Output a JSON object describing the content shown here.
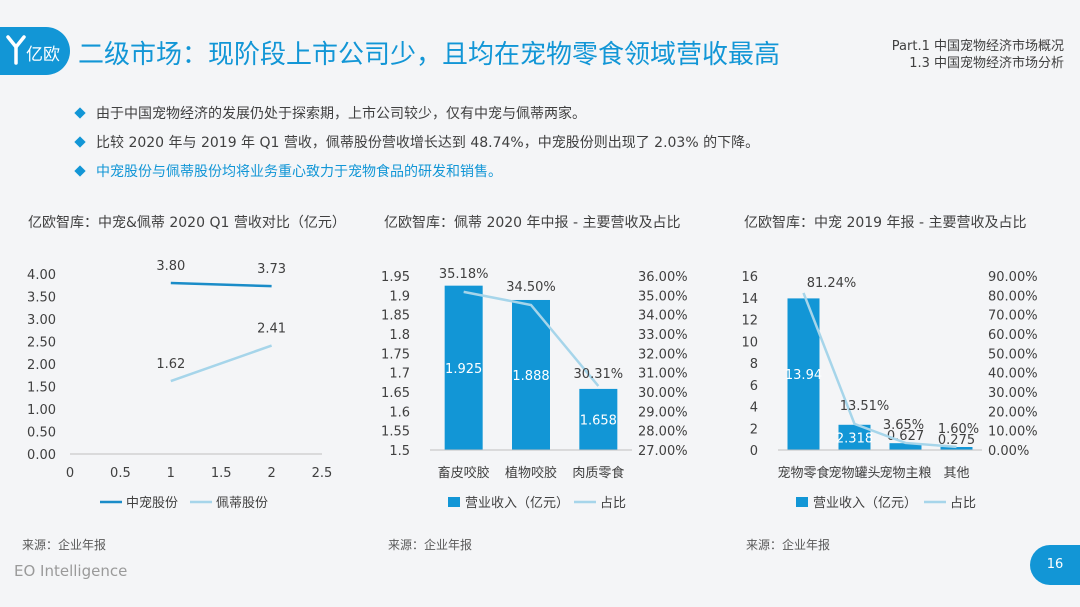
{
  "logo": {
    "text": "亿欧"
  },
  "title": "二级市场：现阶段上市公司少，且均在宠物零食领域营收最高",
  "breadcrumb": {
    "line1": "Part.1 中国宠物经济市场概况",
    "line2": "1.3 中国宠物经济市场分析"
  },
  "bullets": [
    "由于中国宠物经济的发展仍处于探索期，上市公司较少，仅有中宠与佩蒂两家。",
    "比较 2020 年与 2019 年 Q1 营收，佩蒂股份营收增长达到 48.74%，中宠股份则出现了 2.03% 的下降。",
    "中宠股份与佩蒂股份均将业务重心致力于宠物食品的研发和销售。"
  ],
  "colors": {
    "accent": "#1296d6",
    "light": "#a6d5ea"
  },
  "chart_data": [
    {
      "type": "line",
      "title": "亿欧智库：中宠&佩蒂 2020 Q1 营收对比（亿元）",
      "x_ticks": [
        "0",
        "0.5",
        "1",
        "1.5",
        "2",
        "2.5"
      ],
      "y_ticks": [
        "0.00",
        "0.50",
        "1.00",
        "1.50",
        "2.00",
        "2.50",
        "3.00",
        "3.50",
        "4.00"
      ],
      "xlim": [
        0,
        2.5
      ],
      "ylim": [
        0,
        4
      ],
      "series": [
        {
          "name": "中宠股份",
          "x": [
            1,
            2
          ],
          "values": [
            3.8,
            3.73
          ],
          "labels": [
            "3.80",
            "3.73"
          ],
          "color": "#1a8cc8"
        },
        {
          "name": "佩蒂股份",
          "x": [
            1,
            2
          ],
          "values": [
            1.62,
            2.41
          ],
          "labels": [
            "1.62",
            "2.41"
          ],
          "color": "#a6d5ea"
        }
      ],
      "legend": "bottom",
      "source": "来源：企业年报"
    },
    {
      "type": "bar",
      "title": "亿欧智库：佩蒂 2020 年中报 - 主要营收及占比",
      "categories": [
        "畜皮咬胶",
        "植物咬胶",
        "肉质零食"
      ],
      "y_ticks": [
        "1.5",
        "1.55",
        "1.6",
        "1.65",
        "1.7",
        "1.75",
        "1.8",
        "1.85",
        "1.9",
        "1.95"
      ],
      "y2_ticks": [
        "27.00%",
        "28.00%",
        "29.00%",
        "30.00%",
        "31.00%",
        "32.00%",
        "33.00%",
        "34.00%",
        "35.00%",
        "36.00%"
      ],
      "ylim": [
        1.5,
        1.95
      ],
      "y2lim": [
        27,
        36
      ],
      "series": [
        {
          "name": "营业收入（亿元）",
          "kind": "bar",
          "values": [
            1.925,
            1.888,
            1.658
          ],
          "labels": [
            "1.925",
            "1.888",
            "1.658"
          ]
        },
        {
          "name": "占比",
          "kind": "line",
          "axis": "right",
          "values": [
            35.18,
            34.5,
            30.31
          ],
          "labels": [
            "35.18%",
            "34.50%",
            "30.31%"
          ]
        }
      ],
      "legend": "bottom",
      "source": "来源：企业年报"
    },
    {
      "type": "bar",
      "title": "亿欧智库：中宠 2019 年报 - 主要营收及占比",
      "categories": [
        "宠物零食",
        "宠物罐头",
        "宠物主粮",
        "其他"
      ],
      "y_ticks": [
        "0",
        "2",
        "4",
        "6",
        "8",
        "10",
        "12",
        "14",
        "16"
      ],
      "y2_ticks": [
        "0.00%",
        "10.00%",
        "20.00%",
        "30.00%",
        "40.00%",
        "50.00%",
        "60.00%",
        "70.00%",
        "80.00%",
        "90.00%"
      ],
      "ylim": [
        0,
        16
      ],
      "y2lim": [
        0,
        90
      ],
      "series": [
        {
          "name": "营业收入（亿元）",
          "kind": "bar",
          "values": [
            13.94,
            2.318,
            0.627,
            0.275
          ],
          "labels": [
            "13.94",
            "2.318",
            "0.627",
            "0.275"
          ]
        },
        {
          "name": "占比",
          "kind": "line",
          "axis": "right",
          "values": [
            81.24,
            13.51,
            3.65,
            1.6
          ],
          "labels": [
            "81.24%",
            "13.51%",
            "3.65%",
            "1.60%"
          ]
        }
      ],
      "legend": "bottom",
      "source": "来源：企业年报"
    }
  ],
  "footer": {
    "brand": "EO Intelligence",
    "page": "16"
  }
}
